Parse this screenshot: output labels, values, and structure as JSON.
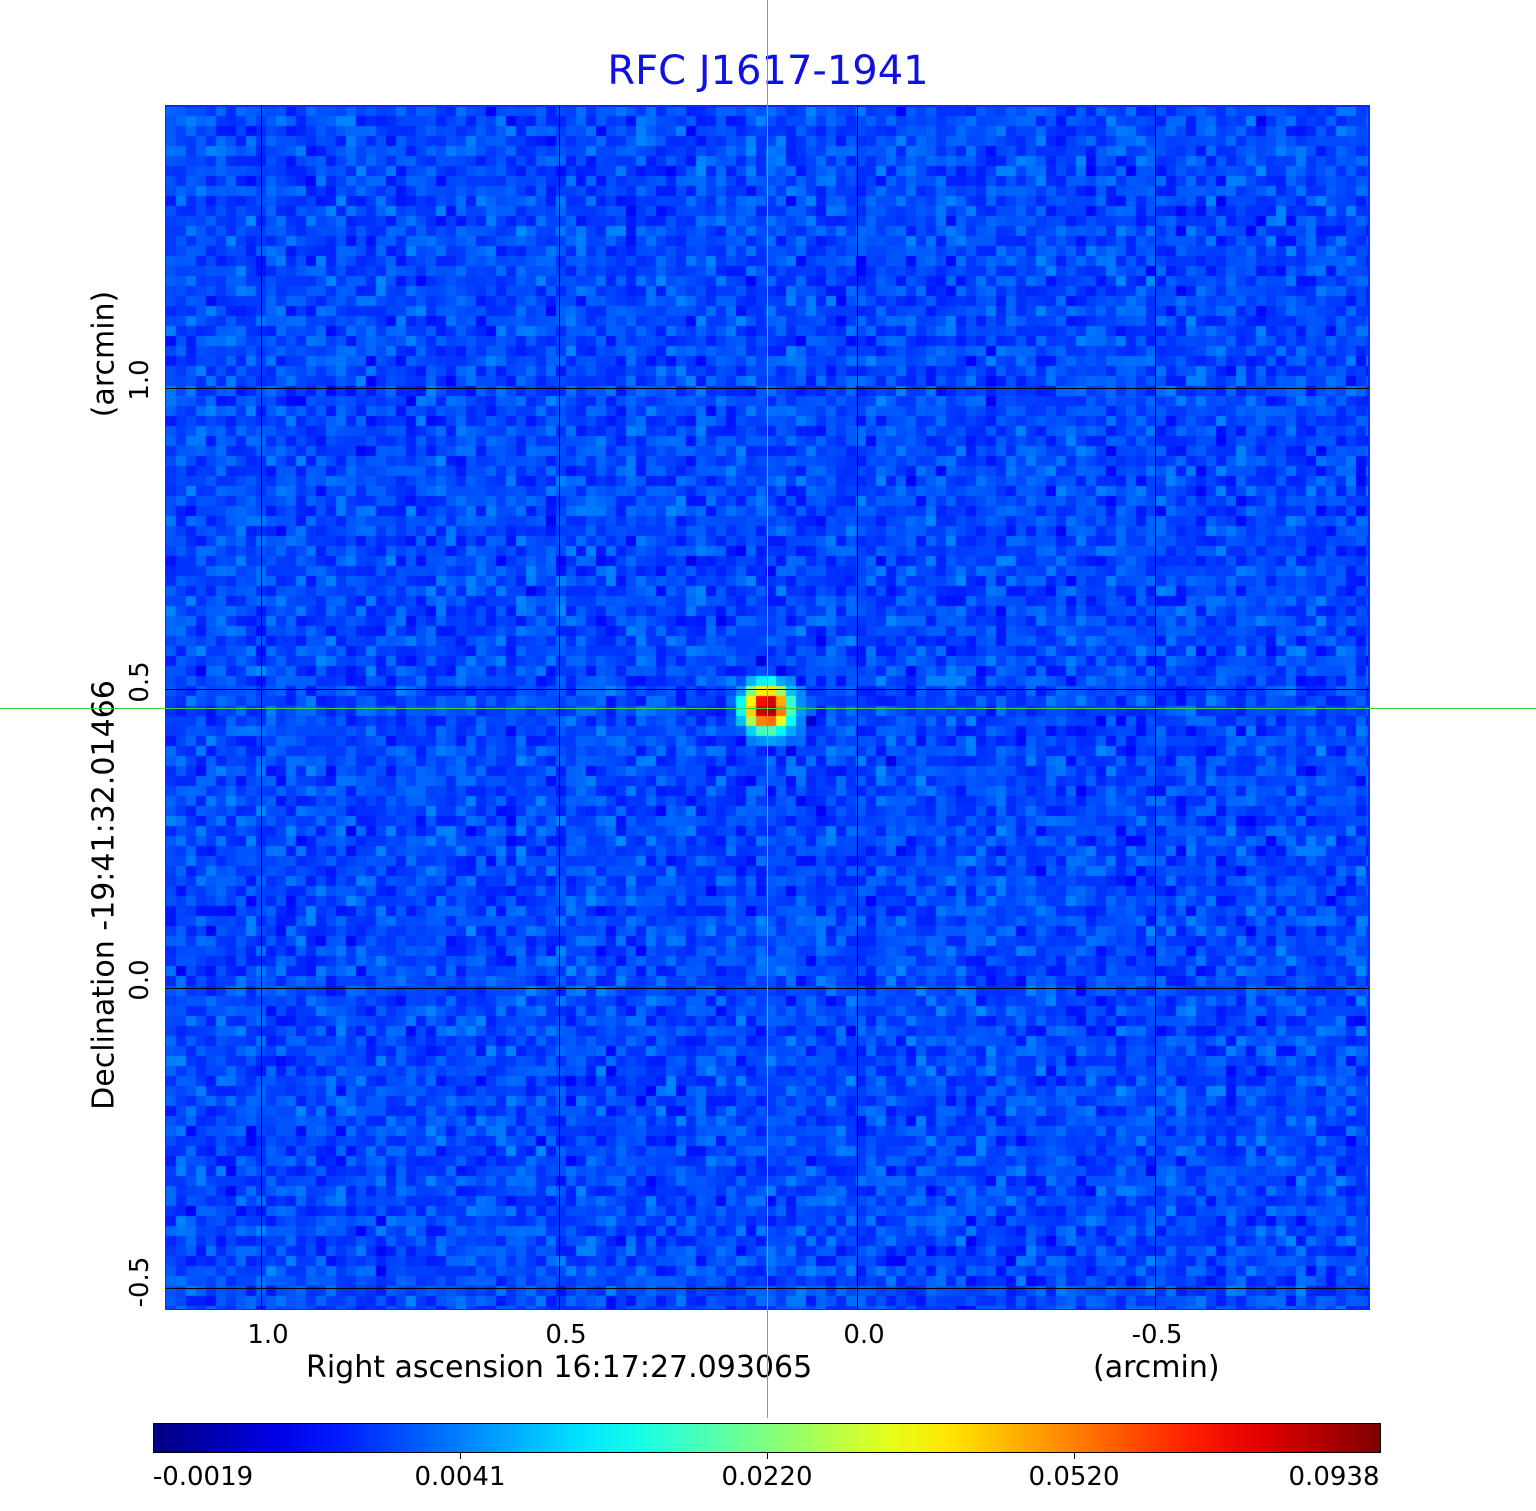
{
  "chart_data": {
    "type": "heatmap",
    "title": "RFC J1617-1941",
    "xlabel": "Right ascension  16:17:27.093065",
    "xunit": "(arcmin)",
    "ylabel": "Declination  -19:41:32.01466",
    "yunit": "(arcmin)",
    "xlim": [
      1.16,
      -0.86
    ],
    "ylim": [
      -0.54,
      1.48
    ],
    "x_ticks": [
      "1.0",
      "0.5",
      "0.0",
      "-0.5"
    ],
    "x_tick_values": [
      1.0,
      0.5,
      0.0,
      -0.5
    ],
    "y_ticks": [
      "-0.5",
      "0.0",
      "0.5",
      "1.0"
    ],
    "y_tick_values": [
      -0.5,
      0.0,
      0.5,
      1.0
    ],
    "grid": true,
    "colormap": "jet",
    "colorbar": {
      "ticks": [
        "-0.0019",
        "0.0041",
        "0.0220",
        "0.0520",
        "0.0938"
      ],
      "tick_values": [
        -0.0019,
        0.0041,
        0.022,
        0.052,
        0.0938
      ],
      "placement": "bottom"
    },
    "source": {
      "ra_offset": 0.15,
      "dec_offset": 0.47,
      "peak": 0.0938
    },
    "background_level": 0.0028,
    "crosshair": {
      "ra_offset": 0.15,
      "dec_offset": 0.47,
      "color": "#3ad23a"
    },
    "colors": {
      "title": "#1010e0",
      "frame": "#0a2bff"
    }
  }
}
